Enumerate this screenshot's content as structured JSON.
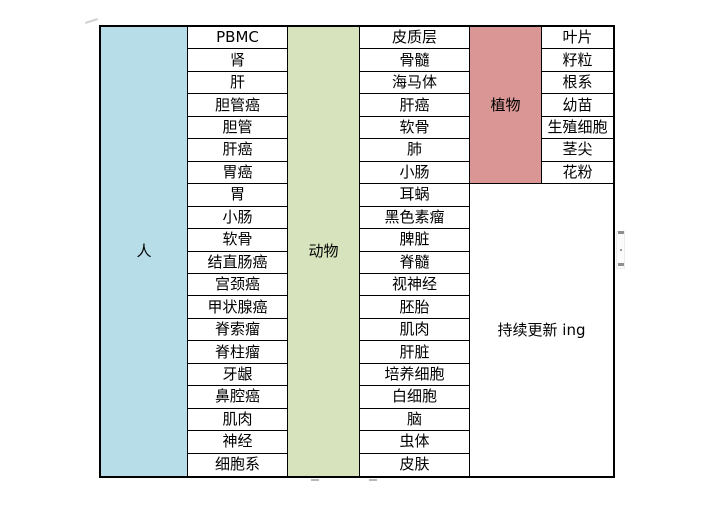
{
  "page": {
    "background": "#ffffff"
  },
  "table": {
    "border_color": "#000000",
    "groups": {
      "human": {
        "label": "人",
        "color": "#b7dee8",
        "items": [
          "PBMC",
          "肾",
          "肝",
          "胆管癌",
          "胆管",
          "肝癌",
          "胃癌",
          "胃",
          "小肠",
          "软骨",
          "结直肠癌",
          "宫颈癌",
          "甲状腺癌",
          "脊索瘤",
          "脊柱瘤",
          "牙龈",
          "鼻腔癌",
          "肌肉",
          "神经",
          "细胞系"
        ]
      },
      "animal": {
        "label": "动物",
        "color": "#d6e3bc",
        "items": [
          "皮质层",
          "骨髓",
          "海马体",
          "肝癌",
          "软骨",
          "肺",
          "小肠",
          "耳蜗",
          "黑色素瘤",
          "脾脏",
          "脊髓",
          "视神经",
          "胚胎",
          "肌肉",
          "肝脏",
          "培养细胞",
          "白细胞",
          "脑",
          "虫体",
          "皮肤"
        ]
      },
      "plant": {
        "label": "植物",
        "color": "#d99694",
        "items": [
          "叶片",
          "籽粒",
          "根系",
          "幼苗",
          "生殖细胞",
          "茎尖",
          "花粉"
        ]
      }
    },
    "note": "持续更新 ing"
  }
}
